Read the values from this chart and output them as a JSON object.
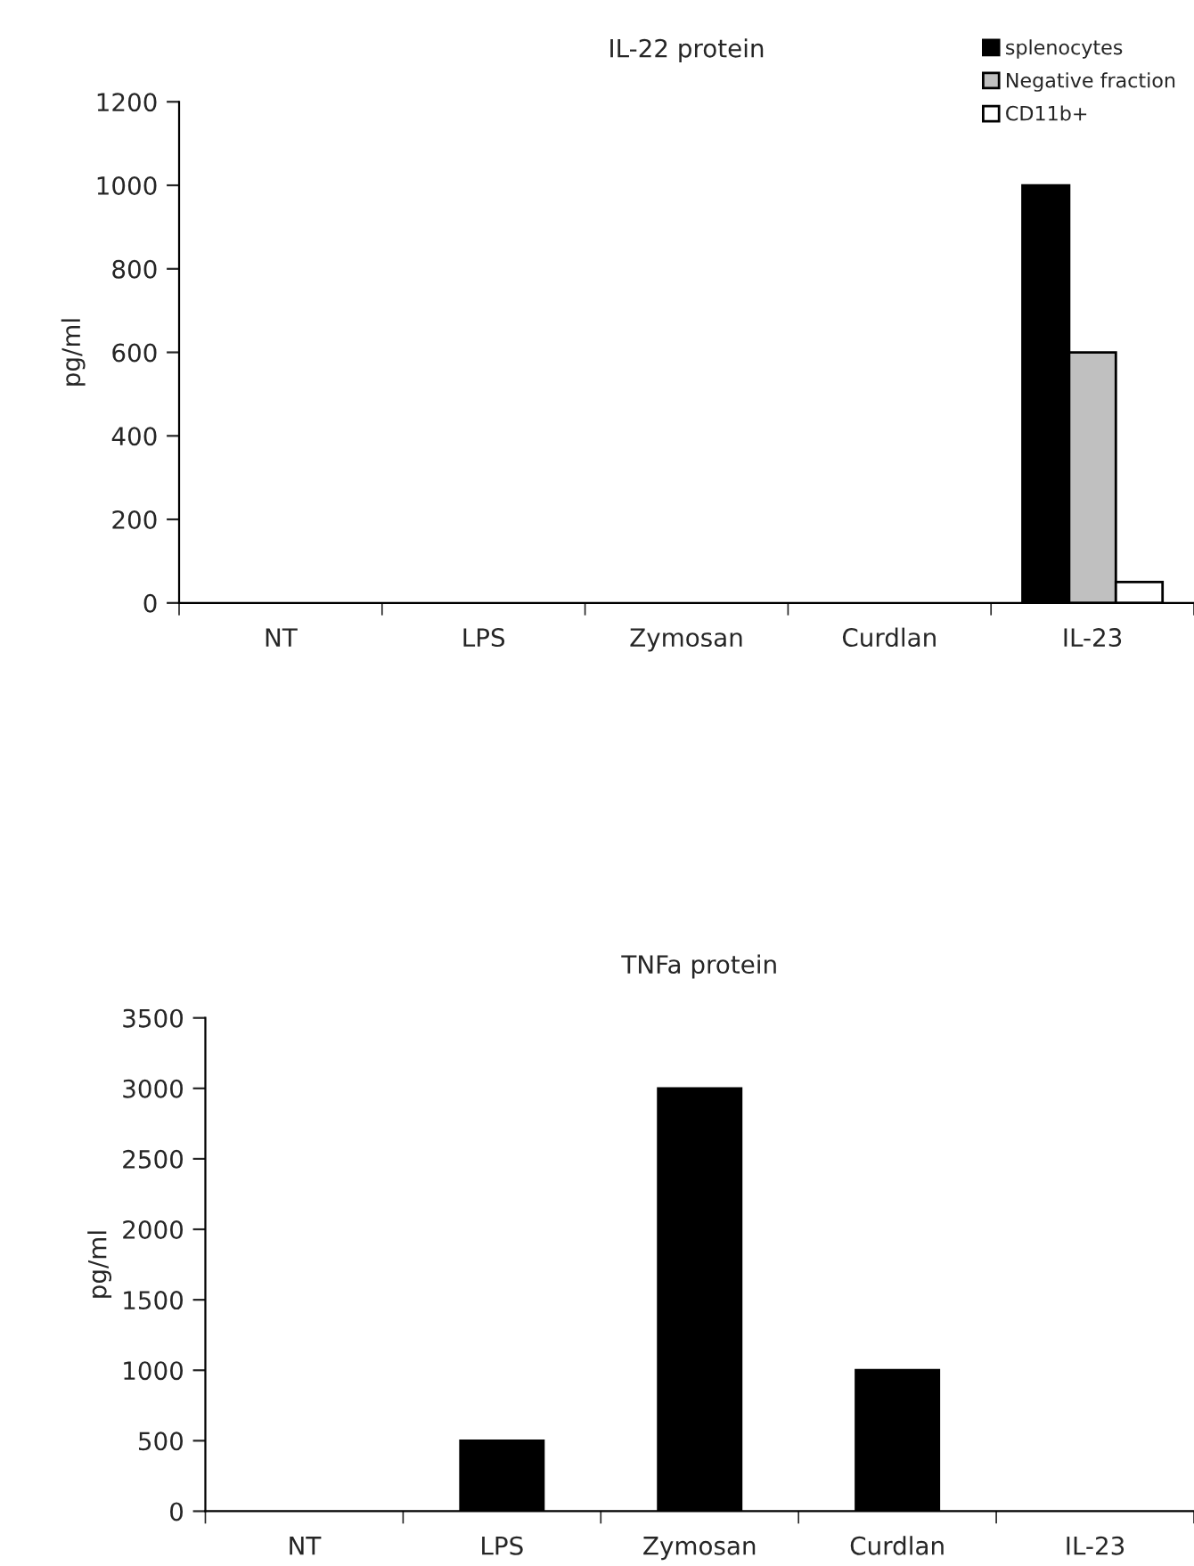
{
  "chart_data": [
    {
      "type": "bar",
      "title": "IL-22 protein",
      "ylabel": "pg/ml",
      "categories": [
        "NT",
        "LPS",
        "Zymosan",
        "Curdlan",
        "IL-23"
      ],
      "series": [
        {
          "name": "splenocytes",
          "color": "#000000",
          "values": [
            0,
            0,
            0,
            0,
            1000
          ]
        },
        {
          "name": "Negative fraction",
          "color": "#c0c0c0",
          "values": [
            0,
            0,
            0,
            0,
            600
          ]
        },
        {
          "name": "CD11b+",
          "color": "#ffffff",
          "values": [
            0,
            0,
            0,
            0,
            50
          ]
        }
      ],
      "ylim": [
        0,
        1200
      ],
      "yticks": [
        0,
        200,
        400,
        600,
        800,
        1000,
        1200
      ],
      "legend": "top right",
      "grid": false
    },
    {
      "type": "bar",
      "title": "TNFa protein",
      "ylabel": "pg/ml",
      "categories": [
        "NT",
        "LPS",
        "Zymosan",
        "Curdlan",
        "IL-23"
      ],
      "series": [
        {
          "color": "#000000",
          "values": [
            0,
            500,
            3000,
            1000,
            0
          ]
        }
      ],
      "ylim": [
        0,
        3500
      ],
      "yticks": [
        0,
        500,
        1000,
        1500,
        2000,
        2500,
        3000,
        3500
      ],
      "grid": false
    }
  ]
}
